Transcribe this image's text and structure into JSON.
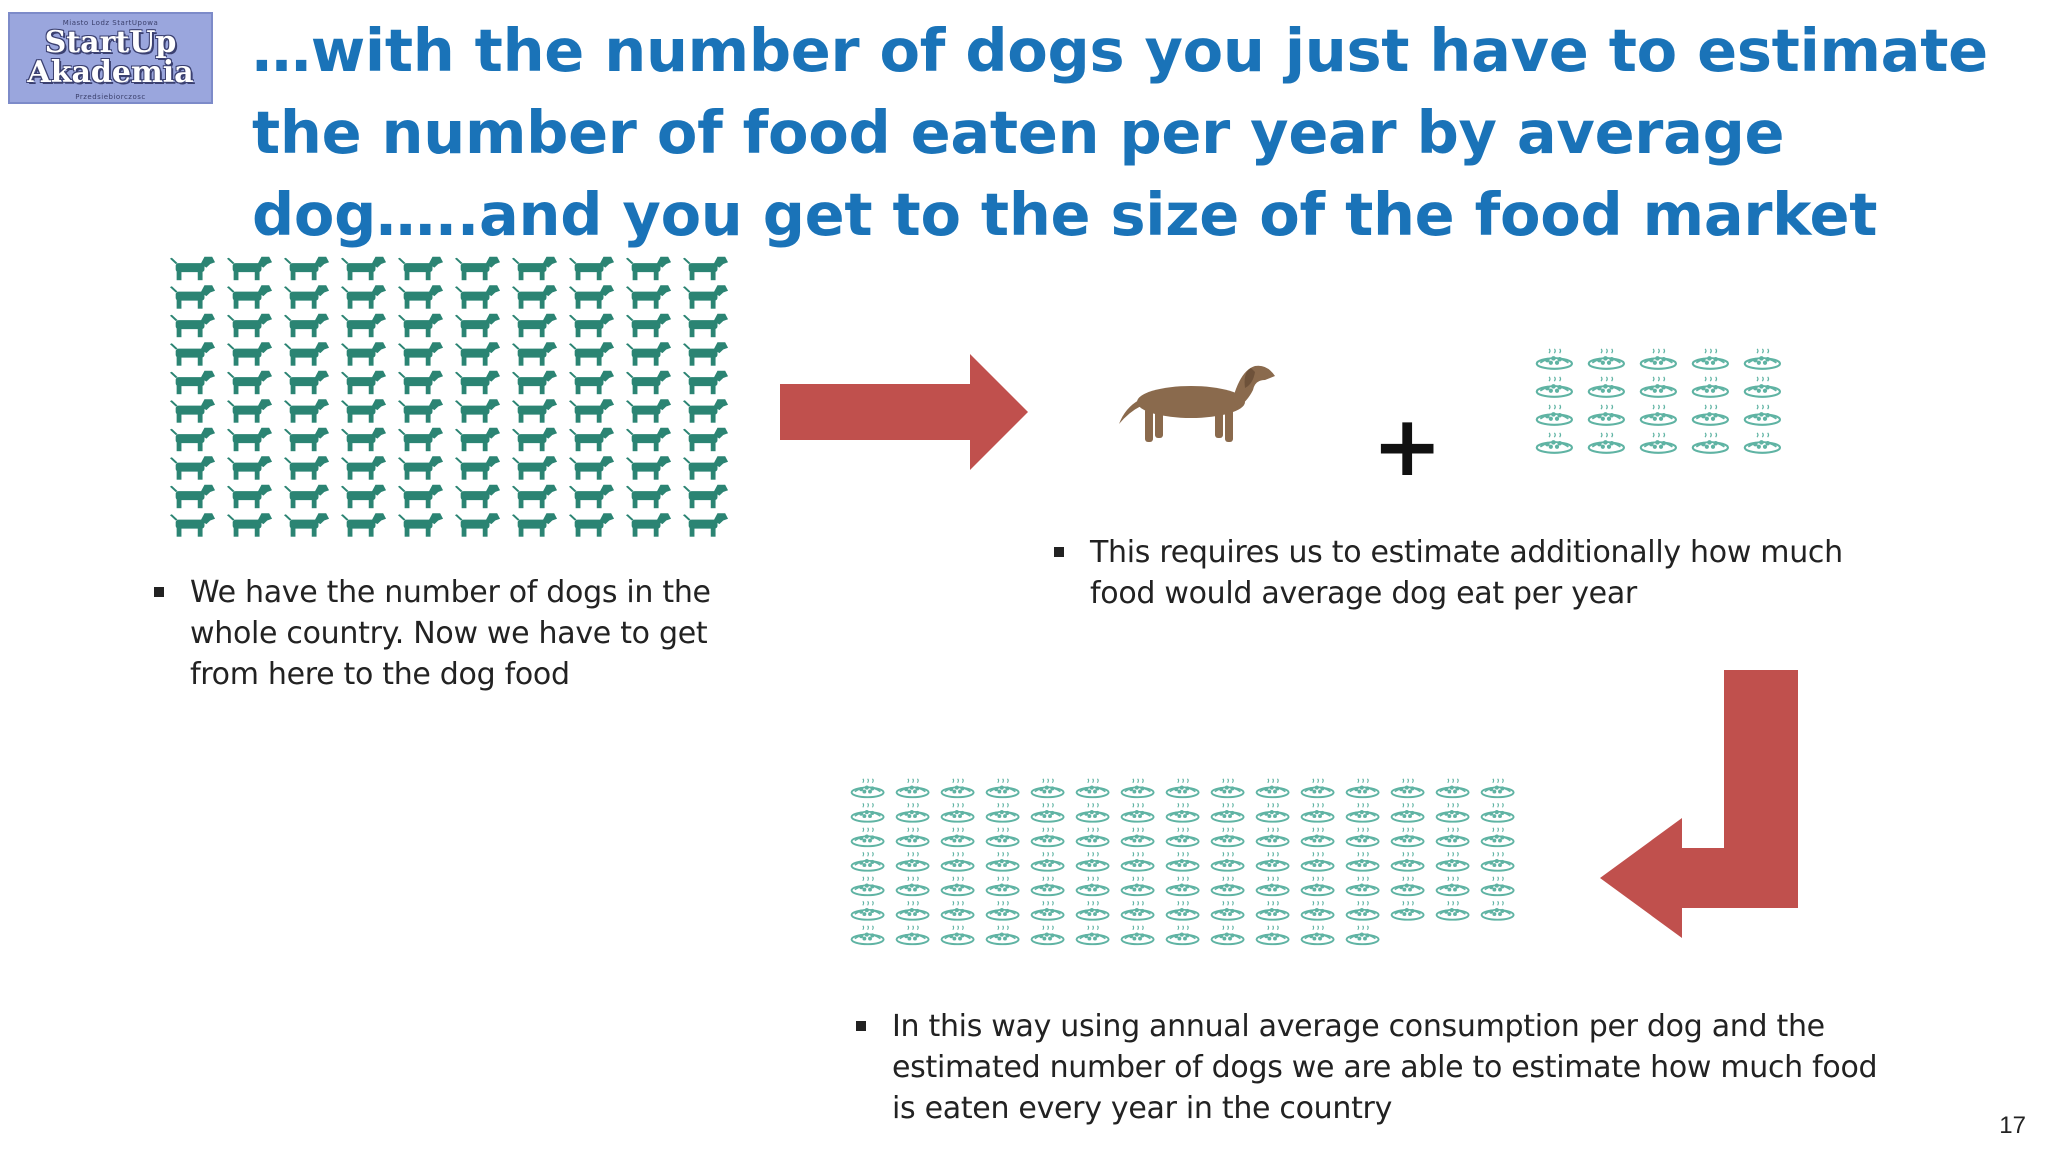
{
  "logo": {
    "top_small": "Miasto Lodz StartUpowa",
    "line1": "StartUp",
    "line2": "Akademia",
    "bottom_small": "Przedsiebiorczosc"
  },
  "title": "…with the number of dogs you just have to estimate the number of food eaten per year by average dog…..and you get to the size of the food market",
  "bullets": {
    "dogs": "We have the number of dogs in the whole country. Now we have to get from here to the dog food",
    "estimate": "This requires us to estimate additionally how much food would average dog eat per year",
    "result": "In this way using annual average consumption per dog and the estimated number of dogs we are able to estimate how much food is eaten every year in the country"
  },
  "plus_sign": "+",
  "page_number": "17",
  "colors": {
    "title": "#1a73b8",
    "dog_icon": "#2b8473",
    "food_icon": "#5fb3a3",
    "arrow": "#c0504d",
    "dachshund": "#8a6a4d"
  },
  "icons": {
    "dog_grid": {
      "icon": "dog-icon",
      "rows": 10,
      "cols": 10,
      "count": 100
    },
    "food_small": {
      "icon": "food-bowl-icon",
      "rows": 4,
      "cols": 5,
      "count": 20
    },
    "food_large": {
      "icon": "food-bowl-icon",
      "rows": 7,
      "cols": 15,
      "count": 102
    }
  }
}
